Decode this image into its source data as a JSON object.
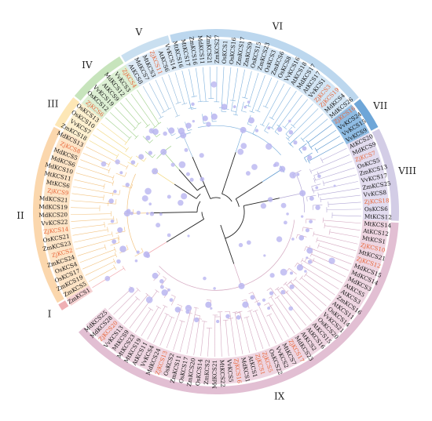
{
  "colors": {
    "highlight": "#e8663a",
    "text": "#111111",
    "node": "#b9b5f0",
    "branch": "#c9c6d6",
    "center": "#222222"
  },
  "clades": [
    {
      "label": "I",
      "ring": "#efb0b4",
      "band": "#f6d2d3",
      "branch": "#f0a0a8",
      "leaves": [
        "ZmKCS1"
      ]
    },
    {
      "label": "II",
      "ring": "#fbd7ad",
      "band": "#fde4c6",
      "branch": "#f3c482",
      "leaves": [
        "ZmKCS5",
        "ZmKCS19",
        "OsKCS17",
        "OsKCS4",
        "ZmKCS24",
        "ZjKCS2",
        "ZmKCS23",
        "OsKCS21",
        "ZjKCS14",
        "VvKCS22",
        "MdKCS20",
        "MdKCS19",
        "MdKCS21",
        "ZjKCS9",
        "MtKCS6",
        "MtKCS11",
        "MdKCS10",
        "MdKCS6",
        "MdKCS5",
        "ZjKCS8",
        "MdKCS13"
      ]
    },
    {
      "label": "III",
      "ring": "#fde7b6",
      "band": "#fdf0cf",
      "branch": "#f2d77a",
      "leaves": [
        "ZmKCS18",
        "VvKCS7",
        "OsKCS10",
        "OsKCS13"
      ]
    },
    {
      "label": "IV",
      "ring": "#c7e4bc",
      "band": "#dcefd3",
      "branch": "#9fd08a",
      "leaves": [
        "ZjKCS6",
        "OsKCS12",
        "VvKCS19",
        "AtKCS9",
        "MdKCS12",
        "VvKCS3",
        "ZjKCS4"
      ]
    },
    {
      "label": "V",
      "ring": "#c9dff0",
      "band": "#dce9f5",
      "branch": "#8fb8dc",
      "leaves": [
        "AtKCS8",
        "MdKCS7",
        "MtKCS3",
        "ZjKCS11",
        "AtKCS6",
        "VvKCS14"
      ]
    },
    {
      "label": "VI",
      "ring": "#bcd7ee",
      "band": "#d3e5f4",
      "branch": "#7fb2de",
      "leaves": [
        "MtKCS16",
        "MtKCS17",
        "ZmKCS16",
        "MdKCS11",
        "ZmKCS21",
        "ZmKCS27",
        "OsKCS1",
        "OsKCS16",
        "ZmKCS17",
        "ZmKCS9",
        "OsKCS15",
        "ZmKCS23",
        "OsKCS3",
        "ZmKCS6",
        "OsKCS8",
        "VvKCS16",
        "AtKCS18",
        "MdKCS17",
        "AtKCS17",
        "VvKCS1",
        "ZjKCS3",
        "ZjKCS19",
        "MdKCS4",
        "MdKCS26"
      ]
    },
    {
      "label": "VII",
      "ring": "#6ea6d8",
      "band": "#8fbce3",
      "branch": "#4e8fcc",
      "leaves": [
        "ZjKCS16",
        "VvKCS24",
        "VvKCS15",
        "VvKCS9"
      ]
    },
    {
      "label": "VIII",
      "ring": "#d3cde6",
      "band": "#e2dcef",
      "branch": "#b3a8d6",
      "leaves": [
        "AtKCS20",
        "MdKCS9",
        "ZjKCS7",
        "OsKCS5",
        "ZmKCS13",
        "VvKCS17",
        "ZmKCS25",
        "VvKCS8",
        "ZjKCS18",
        "OsKCS6",
        "MtKCS12"
      ]
    },
    {
      "label": "IX",
      "ring": "#e2bfd3",
      "band": "#eed5e1",
      "branch": "#d5a9c1",
      "leaves": [
        "MtKCS14",
        "AtKCS12",
        "MtKCS1",
        "ZjKCS10",
        "MtKCS21",
        "ZjKCS12",
        "MdKCS15",
        "MdKCS14",
        "MdKCS3",
        "AtKCS5",
        "AtKCS3",
        "ZmKCS16",
        "AtKCS11",
        "OsKCS14",
        "VvKCS21",
        "OsKCS20",
        "AtKCS15",
        "AtKCS16",
        "AtKCS2",
        "MdKCS23",
        "ZjKCS17",
        "MtKCS7",
        "VvKCS2",
        "OsKCS22",
        "ZjKCS5",
        "ZjKCS1",
        "AtKCS1",
        "MdKCS1",
        "ZjKCS16",
        "VvKCS5",
        "MtKCS22",
        "MdKCS21",
        "ZmKCS2",
        "OsKCS14",
        "ZmKCS20",
        "OsKCS17",
        "ZmKCS11",
        "OsKCS2",
        "ZjKCS13",
        "MdKCS24",
        "VvKCS4",
        "AtKCS11",
        "MtKCS19",
        "MtKCS23",
        "MtKCS9",
        "VvKCS13",
        "ZjKCS20",
        "MdKCS28",
        "MdKCS25"
      ]
    }
  ]
}
